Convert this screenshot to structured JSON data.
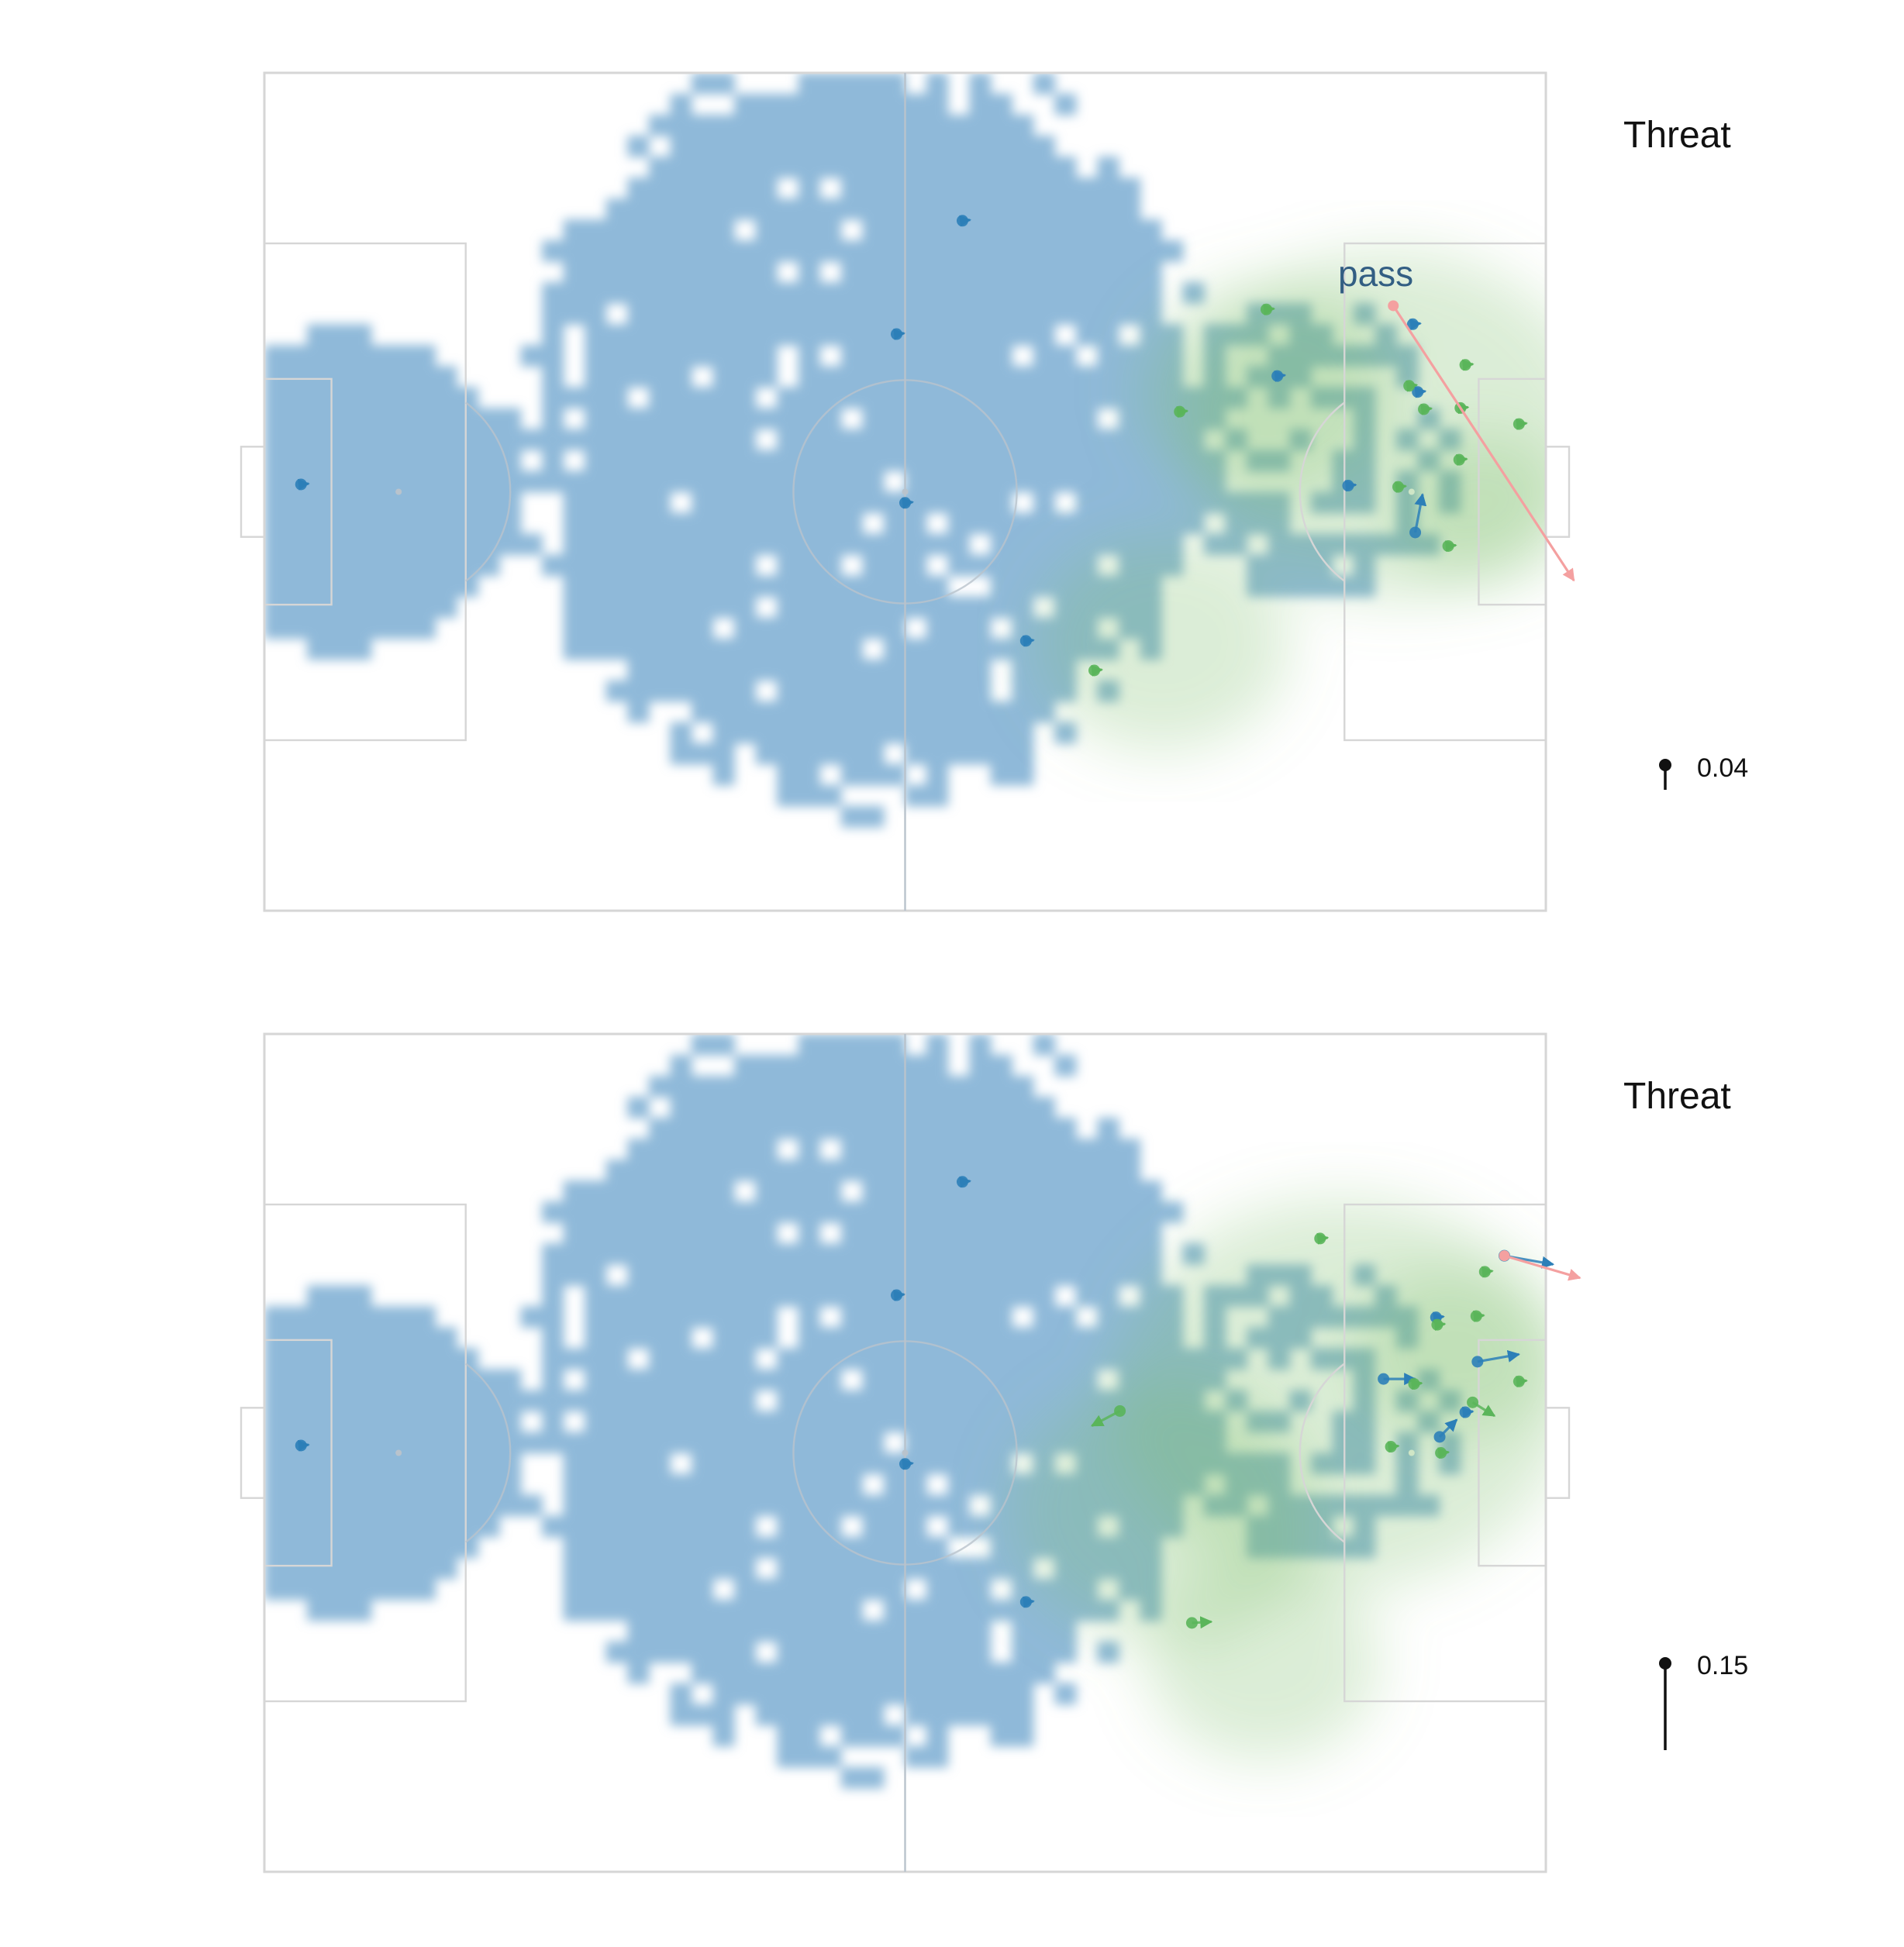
{
  "chart_data": [
    {
      "type": "scatter",
      "x_range": [
        0,
        105
      ],
      "y_range": [
        0,
        68
      ],
      "legend": {
        "title": "Threat",
        "position": "right",
        "scale_value": "0.04"
      },
      "annotation": "pass",
      "colors": {
        "territory": "#8fb9d9",
        "threat_surface": "#7fc06a",
        "team_a": "#2c7fb8",
        "team_b": "#5ab55a",
        "ball_pass": "#f4a0a0",
        "pitch_line": "#d6d6d6",
        "centre_line": "#b9c3cc"
      },
      "ball": {
        "x": 92.5,
        "y": 49.1,
        "end_x": 107.3,
        "end_y": 26.8
      },
      "team_a": [
        {
          "x": 3.0,
          "y": 34.6
        },
        {
          "x": 52.5,
          "y": 33.1
        },
        {
          "x": 51.8,
          "y": 46.8
        },
        {
          "x": 57.2,
          "y": 56.0
        },
        {
          "x": 62.4,
          "y": 21.9
        },
        {
          "x": 83.0,
          "y": 43.4
        },
        {
          "x": 88.8,
          "y": 34.5
        },
        {
          "x": 94.1,
          "y": 47.6
        },
        {
          "x": 94.5,
          "y": 42.1
        },
        {
          "x": 94.3,
          "y": 30.7,
          "dx": 0.6,
          "dy": 3.1
        }
      ],
      "team_b": [
        {
          "x": 68.0,
          "y": 19.5
        },
        {
          "x": 75.0,
          "y": 40.5
        },
        {
          "x": 82.1,
          "y": 48.8
        },
        {
          "x": 93.8,
          "y": 42.6
        },
        {
          "x": 95.0,
          "y": 40.7
        },
        {
          "x": 98.0,
          "y": 40.8
        },
        {
          "x": 98.4,
          "y": 44.3
        },
        {
          "x": 102.8,
          "y": 39.5
        },
        {
          "x": 97.9,
          "y": 36.6
        },
        {
          "x": 92.9,
          "y": 34.4
        },
        {
          "x": 97.0,
          "y": 29.6
        }
      ]
    },
    {
      "type": "scatter",
      "x_range": [
        0,
        105
      ],
      "y_range": [
        0,
        68
      ],
      "legend": {
        "title": "Threat",
        "position": "right",
        "scale_value": "0.15"
      },
      "colors": {
        "territory": "#8fb9d9",
        "threat_surface": "#7fc06a",
        "team_a": "#2c7fb8",
        "team_b": "#5ab55a",
        "ball_pass": "#f4a0a0",
        "pitch_line": "#d6d6d6",
        "centre_line": "#b9c3cc"
      },
      "ball": {
        "x": 101.6,
        "y": 50.0,
        "end_x": 107.8,
        "end_y": 48.2
      },
      "team_a": [
        {
          "x": 3.0,
          "y": 34.6
        },
        {
          "x": 52.5,
          "y": 33.1
        },
        {
          "x": 51.8,
          "y": 46.8
        },
        {
          "x": 57.2,
          "y": 56.0
        },
        {
          "x": 62.4,
          "y": 21.9
        },
        {
          "x": 101.6,
          "y": 50.0,
          "dx": 4.0,
          "dy": -0.7
        },
        {
          "x": 96.0,
          "y": 45.0
        },
        {
          "x": 99.4,
          "y": 41.4,
          "dx": 3.4,
          "dy": 0.6
        },
        {
          "x": 91.7,
          "y": 40.0,
          "dx": 2.6,
          "dy": 0.0
        },
        {
          "x": 98.4,
          "y": 37.3
        },
        {
          "x": 96.3,
          "y": 35.3,
          "dx": 1.4,
          "dy": 1.4
        }
      ],
      "team_b": [
        {
          "x": 70.1,
          "y": 37.4,
          "dx": -2.3,
          "dy": -1.2
        },
        {
          "x": 86.5,
          "y": 51.4
        },
        {
          "x": 100.0,
          "y": 48.7
        },
        {
          "x": 99.3,
          "y": 45.1
        },
        {
          "x": 96.1,
          "y": 44.4
        },
        {
          "x": 94.2,
          "y": 39.6
        },
        {
          "x": 102.8,
          "y": 39.8
        },
        {
          "x": 99.0,
          "y": 38.1,
          "dx": 1.8,
          "dy": -1.1
        },
        {
          "x": 92.3,
          "y": 34.5
        },
        {
          "x": 96.4,
          "y": 34.0
        },
        {
          "x": 76.0,
          "y": 20.2,
          "dx": 1.6,
          "dy": 0.1
        }
      ]
    }
  ]
}
